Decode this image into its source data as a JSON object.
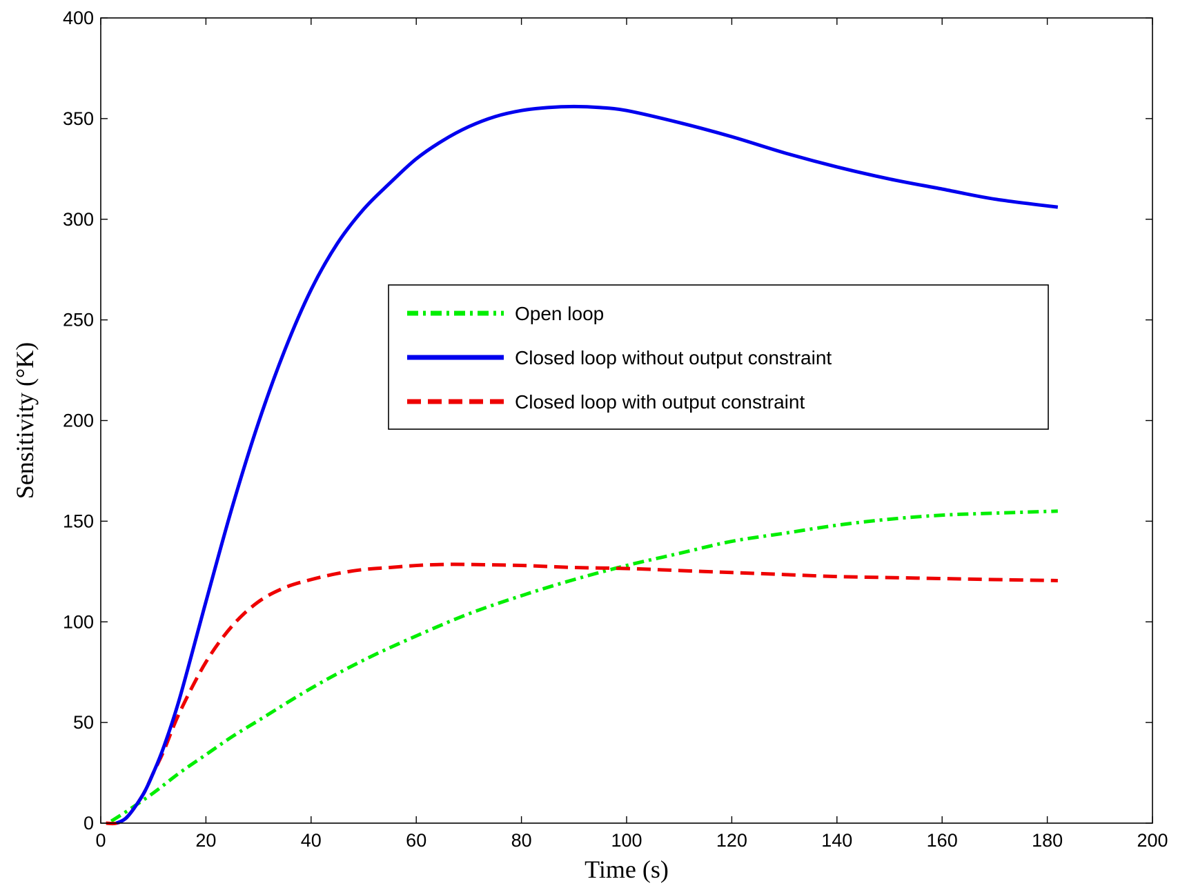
{
  "chart_data": {
    "type": "line",
    "title": "",
    "xlabel": "Time (s)",
    "ylabel": "Sensitivity (°K)",
    "xlim": [
      0,
      200
    ],
    "ylim": [
      0,
      400
    ],
    "xticks": [
      0,
      20,
      40,
      60,
      80,
      100,
      120,
      140,
      160,
      180,
      200
    ],
    "yticks": [
      0,
      50,
      100,
      150,
      200,
      250,
      300,
      350,
      400
    ],
    "grid": false,
    "legend": "center-right",
    "series": [
      {
        "name": "Open loop",
        "color": "#00ee00",
        "style": "dash-dot",
        "x": [
          2,
          5,
          10,
          15,
          20,
          25,
          30,
          40,
          50,
          60,
          70,
          80,
          90,
          100,
          110,
          120,
          130,
          140,
          150,
          160,
          170,
          182
        ],
        "y": [
          1,
          6,
          15,
          25,
          34,
          43,
          51,
          67,
          81,
          93,
          104,
          113,
          121,
          128,
          134,
          140,
          144,
          148,
          151,
          153,
          154,
          155
        ]
      },
      {
        "name": "Closed loop without output constraint",
        "color": "#0000ee",
        "style": "solid",
        "x": [
          3,
          5,
          8,
          10,
          12,
          15,
          20,
          25,
          30,
          35,
          40,
          45,
          50,
          55,
          60,
          65,
          70,
          75,
          80,
          85,
          90,
          95,
          100,
          110,
          120,
          130,
          140,
          150,
          160,
          170,
          182
        ],
        "y": [
          0,
          3,
          14,
          25,
          38,
          62,
          110,
          157,
          199,
          235,
          265,
          288,
          305,
          318,
          330,
          339,
          346,
          351,
          354,
          355.5,
          356,
          355.5,
          354,
          348,
          341,
          333,
          326,
          320,
          315,
          310,
          306
        ]
      },
      {
        "name": "Closed loop with output constraint",
        "color": "#ee0000",
        "style": "dashed",
        "x": [
          1,
          3,
          5,
          8,
          10,
          12,
          15,
          20,
          25,
          30,
          35,
          40,
          45,
          50,
          55,
          60,
          65,
          70,
          80,
          90,
          100,
          110,
          120,
          130,
          140,
          150,
          160,
          170,
          182
        ],
        "y": [
          0,
          0,
          3,
          14,
          25,
          36,
          55,
          80,
          98,
          110,
          117,
          121,
          124,
          126,
          127,
          128,
          128.5,
          128.5,
          128,
          127,
          126.5,
          125.5,
          124.5,
          123.5,
          122.5,
          122,
          121.5,
          121,
          120.5
        ]
      }
    ]
  }
}
